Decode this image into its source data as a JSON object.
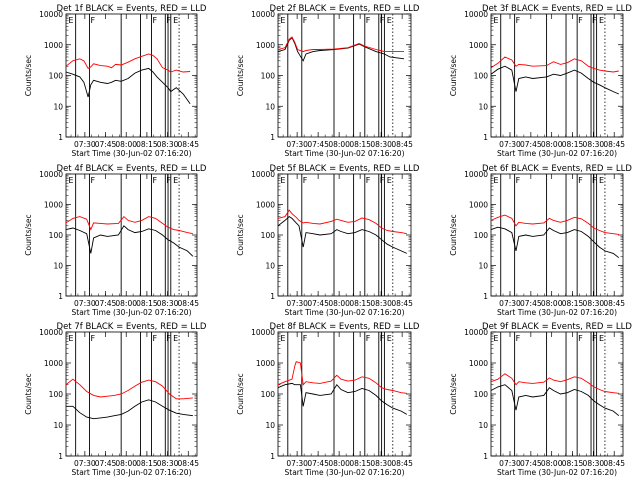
{
  "chart_data": {
    "type": "line",
    "y_scale": "log",
    "ylim": [
      1,
      10000
    ],
    "ylabel": "Counts/sec",
    "xlabel": "Start Time (30-Jun-02 07:16:20)",
    "x_minutes_range": [
      0,
      95
    ],
    "x_ticks": [
      {
        "label": "07:30",
        "minutes": 13.67
      },
      {
        "label": "07:45",
        "minutes": 28.67
      },
      {
        "label": "08:00",
        "minutes": 43.67
      },
      {
        "label": "08:15",
        "minutes": 58.67
      },
      {
        "label": "08:30",
        "minutes": 73.67
      },
      {
        "label": "08:45",
        "minutes": 88.67
      }
    ],
    "y_ticks": [
      {
        "label": "1",
        "value": 1
      },
      {
        "label": "10",
        "value": 10
      },
      {
        "label": "100",
        "value": 100
      },
      {
        "label": "1000",
        "value": 1000
      },
      {
        "label": "10000",
        "value": 10000
      }
    ],
    "series_colors": {
      "events": "#000000",
      "lld": "#ff0000"
    },
    "marker_lines_minutes": [
      7,
      17,
      40,
      54,
      62,
      72,
      74,
      76
    ],
    "marker_dotted_minutes": [
      82
    ],
    "marker_letters": [
      {
        "label": "E",
        "minutes": 1
      },
      {
        "label": "F",
        "minutes": 17
      },
      {
        "label": "F",
        "minutes": 62
      },
      {
        "label": "F",
        "minutes": 72
      },
      {
        "label": "E",
        "minutes": 77
      }
    ],
    "panels": [
      {
        "title": "Det 1f BLACK = Events, RED = LLD",
        "x": [
          0,
          5,
          10,
          13,
          16,
          18,
          20,
          25,
          30,
          33,
          36,
          40,
          45,
          50,
          55,
          60,
          63,
          66,
          70,
          74,
          76,
          78,
          80,
          85,
          90
        ],
        "lld": [
          200,
          300,
          350,
          300,
          170,
          190,
          240,
          210,
          200,
          180,
          230,
          220,
          270,
          350,
          420,
          500,
          450,
          350,
          180,
          150,
          130,
          140,
          150,
          130,
          135
        ],
        "events": [
          130,
          110,
          90,
          60,
          20,
          50,
          70,
          60,
          55,
          60,
          70,
          65,
          80,
          120,
          150,
          170,
          130,
          90,
          60,
          40,
          30,
          35,
          40,
          25,
          12
        ]
      },
      {
        "title": "Det 2f BLACK = Events, RED = LLD",
        "x": [
          0,
          5,
          8,
          10,
          12,
          14,
          18,
          20,
          25,
          30,
          40,
          50,
          58,
          62,
          70,
          76,
          80,
          90
        ],
        "lld": [
          700,
          800,
          1500,
          1800,
          1200,
          700,
          600,
          650,
          700,
          700,
          720,
          800,
          1100,
          900,
          700,
          600,
          600,
          600
        ],
        "events": [
          600,
          700,
          1400,
          1700,
          1100,
          600,
          300,
          500,
          600,
          650,
          700,
          780,
          1050,
          850,
          600,
          500,
          400,
          350
        ]
      },
      {
        "title": "Det 3f BLACK = Events, RED = LLD",
        "x": [
          0,
          5,
          10,
          15,
          18,
          20,
          25,
          30,
          40,
          45,
          50,
          55,
          60,
          65,
          70,
          74,
          78,
          82,
          88,
          92
        ],
        "lld": [
          180,
          250,
          400,
          320,
          200,
          230,
          220,
          200,
          210,
          280,
          230,
          260,
          350,
          300,
          200,
          170,
          150,
          140,
          130,
          140
        ],
        "events": [
          110,
          160,
          200,
          150,
          30,
          80,
          90,
          80,
          90,
          110,
          100,
          120,
          150,
          120,
          80,
          60,
          50,
          40,
          30,
          25
        ]
      },
      {
        "title": "Det 4f BLACK = Events, RED = LLD",
        "x": [
          0,
          5,
          10,
          15,
          18,
          20,
          25,
          30,
          38,
          42,
          45,
          50,
          55,
          60,
          65,
          70,
          74,
          78,
          82,
          88,
          92
        ],
        "lld": [
          250,
          350,
          400,
          330,
          150,
          250,
          240,
          230,
          240,
          400,
          300,
          260,
          300,
          400,
          350,
          240,
          180,
          150,
          140,
          120,
          110
        ],
        "events": [
          150,
          170,
          140,
          110,
          25,
          80,
          100,
          90,
          100,
          200,
          150,
          120,
          130,
          160,
          140,
          100,
          70,
          55,
          40,
          30,
          20
        ]
      },
      {
        "title": "Det 5f BLACK = Events, RED = LLD",
        "x": [
          0,
          5,
          8,
          10,
          13,
          15,
          18,
          20,
          25,
          30,
          38,
          42,
          45,
          50,
          55,
          60,
          65,
          70,
          74,
          78,
          82,
          88,
          92
        ],
        "lld": [
          350,
          400,
          650,
          500,
          380,
          300,
          250,
          260,
          240,
          230,
          280,
          330,
          300,
          260,
          280,
          360,
          320,
          240,
          170,
          140,
          130,
          120,
          110
        ],
        "events": [
          200,
          300,
          400,
          350,
          250,
          200,
          40,
          120,
          110,
          100,
          110,
          150,
          130,
          110,
          120,
          150,
          130,
          100,
          70,
          50,
          40,
          30,
          25
        ]
      },
      {
        "title": "Det 6f BLACK = Events, RED = LLD",
        "x": [
          0,
          5,
          10,
          15,
          18,
          20,
          25,
          30,
          38,
          42,
          45,
          50,
          55,
          60,
          65,
          70,
          74,
          78,
          82,
          88,
          92
        ],
        "lld": [
          300,
          380,
          450,
          350,
          200,
          260,
          240,
          230,
          250,
          350,
          300,
          260,
          300,
          380,
          340,
          240,
          170,
          140,
          120,
          110,
          105
        ],
        "events": [
          150,
          180,
          160,
          120,
          30,
          90,
          100,
          90,
          100,
          170,
          140,
          110,
          120,
          150,
          130,
          90,
          60,
          40,
          30,
          25,
          18
        ]
      },
      {
        "title": "Det 7f BLACK = Events, RED = LLD",
        "x": [
          0,
          5,
          10,
          15,
          20,
          25,
          30,
          35,
          40,
          45,
          50,
          55,
          60,
          65,
          70,
          75,
          80,
          85,
          92
        ],
        "lld": [
          200,
          300,
          200,
          120,
          90,
          80,
          85,
          90,
          100,
          130,
          180,
          240,
          280,
          250,
          180,
          100,
          70,
          70,
          75
        ],
        "events": [
          40,
          40,
          25,
          18,
          16,
          17,
          18,
          20,
          22,
          28,
          40,
          55,
          65,
          55,
          40,
          30,
          24,
          22,
          20
        ]
      },
      {
        "title": "Det 8f BLACK = Events, RED = LLD",
        "x": [
          0,
          5,
          10,
          12,
          13,
          16,
          18,
          20,
          25,
          30,
          38,
          42,
          45,
          50,
          55,
          60,
          65,
          70,
          74,
          78,
          82,
          88,
          92
        ],
        "lld": [
          200,
          250,
          300,
          800,
          1100,
          1000,
          200,
          250,
          230,
          220,
          260,
          400,
          300,
          260,
          280,
          360,
          320,
          230,
          160,
          140,
          130,
          110,
          105
        ],
        "events": [
          160,
          200,
          220,
          200,
          200,
          200,
          40,
          110,
          100,
          90,
          100,
          200,
          140,
          110,
          120,
          150,
          130,
          90,
          60,
          45,
          35,
          28,
          22
        ]
      },
      {
        "title": "Det 9f BLACK = Events, RED = LLD",
        "x": [
          0,
          5,
          10,
          15,
          18,
          20,
          25,
          30,
          38,
          42,
          45,
          50,
          55,
          60,
          65,
          70,
          74,
          78,
          82,
          88,
          92
        ],
        "lld": [
          250,
          300,
          450,
          320,
          200,
          250,
          230,
          220,
          240,
          330,
          280,
          250,
          290,
          360,
          320,
          230,
          170,
          140,
          120,
          110,
          105
        ],
        "events": [
          130,
          170,
          200,
          130,
          30,
          80,
          90,
          80,
          90,
          160,
          130,
          100,
          110,
          140,
          120,
          90,
          60,
          45,
          35,
          28,
          20
        ]
      }
    ]
  }
}
